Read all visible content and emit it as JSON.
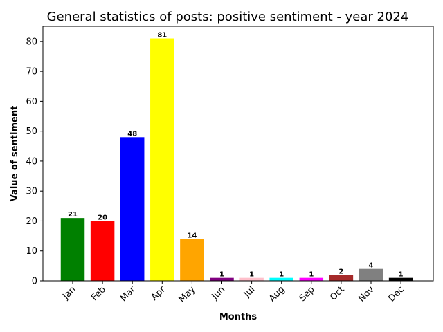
{
  "chart_data": {
    "type": "bar",
    "title": "General statistics of posts: positive sentiment - year 2024",
    "xlabel": "Months",
    "ylabel": "Value of sentiment",
    "categories": [
      "Jan",
      "Feb",
      "Mar",
      "Apr",
      "May",
      "Jun",
      "Jul",
      "Aug",
      "Sep",
      "Oct",
      "Nov",
      "Dec"
    ],
    "values": [
      21,
      20,
      48,
      81,
      14,
      1,
      1,
      1,
      1,
      2,
      4,
      1
    ],
    "colors": [
      "#008000",
      "#ff0000",
      "#0000ff",
      "#ffff00",
      "#ffa500",
      "#800080",
      "#ffc0cb",
      "#00ffff",
      "#ff00ff",
      "#a52a2a",
      "#808080",
      "#000000"
    ],
    "yticks": [
      0,
      10,
      20,
      30,
      40,
      50,
      60,
      70,
      80
    ],
    "ylim": [
      0,
      85.05
    ],
    "grid": false,
    "legend": "none"
  }
}
